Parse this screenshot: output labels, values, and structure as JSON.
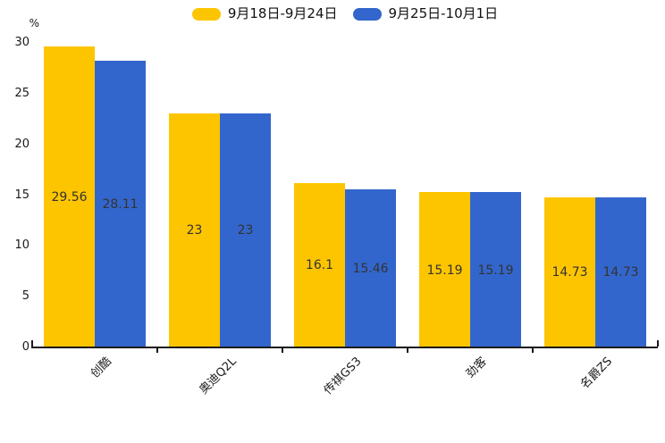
{
  "chart_data": {
    "type": "bar",
    "title": "",
    "xlabel": "",
    "ylabel": "%",
    "ylim": [
      0,
      30
    ],
    "yticks": [
      0,
      5,
      10,
      15,
      20,
      25,
      30
    ],
    "grid": false,
    "legend_position": "top-center",
    "categories": [
      "创酷",
      "奥迪Q2L",
      "传祺GS3",
      "劲客",
      "名爵ZS"
    ],
    "series": [
      {
        "name": "9月18日-9月24日",
        "color": "#FDC500",
        "values": [
          29.56,
          23,
          16.1,
          15.19,
          14.73
        ]
      },
      {
        "name": "9月25日-10月1日",
        "color": "#3366CC",
        "values": [
          28.11,
          23,
          15.46,
          15.19,
          14.73
        ]
      }
    ],
    "value_label_position": "inside-center",
    "value_label_color": "#333333",
    "axis_color": "#1a1a1a",
    "background_color": "#ffffff"
  }
}
